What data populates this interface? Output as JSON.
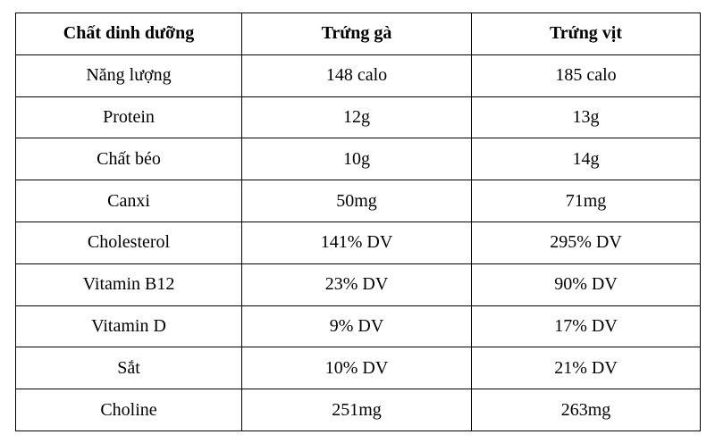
{
  "table": {
    "header": [
      "Chất dinh dưỡng",
      "Trứng gà",
      "Trứng vịt"
    ],
    "rows": [
      [
        "Năng lượng",
        "148 calo",
        "185 calo"
      ],
      [
        "Protein",
        "12g",
        "13g"
      ],
      [
        "Chất béo",
        "10g",
        "14g"
      ],
      [
        "Canxi",
        "50mg",
        "71mg"
      ],
      [
        "Cholesterol",
        "141% DV",
        "295% DV"
      ],
      [
        "Vitamin B12",
        "23% DV",
        "90% DV"
      ],
      [
        "Vitamin D",
        "9% DV",
        "17% DV"
      ],
      [
        "Sắt",
        "10% DV",
        "21% DV"
      ],
      [
        "Choline",
        "251mg",
        "263mg"
      ]
    ]
  }
}
